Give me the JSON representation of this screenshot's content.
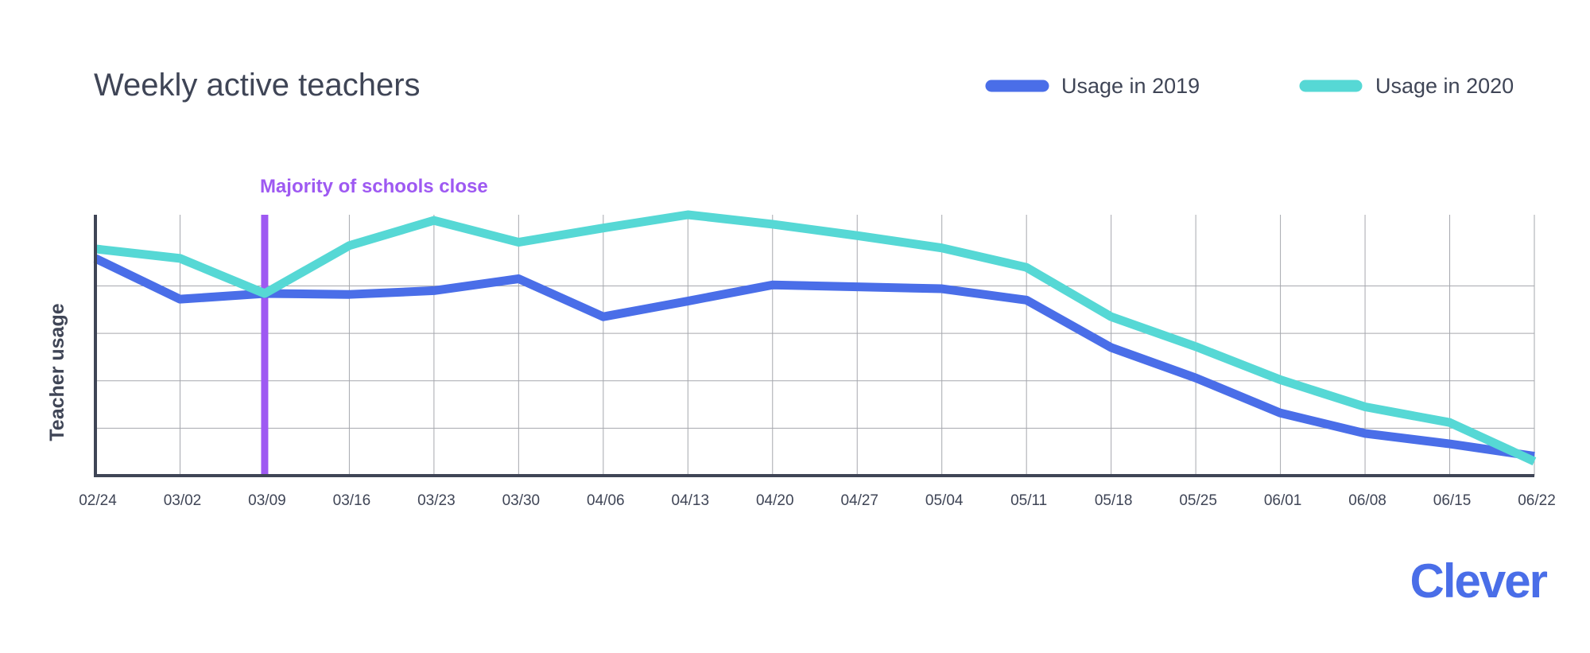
{
  "chart_data": {
    "type": "line",
    "title": "Weekly active teachers",
    "xlabel": "",
    "ylabel": "Teacher usage",
    "categories": [
      "02/24",
      "03/02",
      "03/09",
      "03/16",
      "03/23",
      "03/30",
      "04/06",
      "04/13",
      "04/20",
      "04/27",
      "05/04",
      "05/11",
      "05/18",
      "05/25",
      "06/01",
      "06/08",
      "06/15",
      "06/22"
    ],
    "ylim": [
      0,
      5.5
    ],
    "grid": true,
    "legend_position": "top-right",
    "series": [
      {
        "name": "Usage in 2019",
        "color": "#4a6ee8",
        "values": [
          4.58,
          3.72,
          3.84,
          3.82,
          3.9,
          4.15,
          3.35,
          3.68,
          4.02,
          3.98,
          3.94,
          3.7,
          2.7,
          2.06,
          1.32,
          0.89,
          0.67,
          0.41
        ]
      },
      {
        "name": "Usage in 2020",
        "color": "#56d8d5",
        "values": [
          4.78,
          4.58,
          3.84,
          4.85,
          5.38,
          4.92,
          5.22,
          5.5,
          5.3,
          5.06,
          4.8,
          4.39,
          3.35,
          2.72,
          2.02,
          1.45,
          1.12,
          0.3
        ]
      }
    ],
    "annotations": [
      {
        "text": "Majority of schools close",
        "x": "03/09",
        "color": "#9e59f2"
      }
    ]
  },
  "brand": "Clever",
  "colors": {
    "axis": "#3f4556",
    "grid": "#a6a8ae",
    "brand": "#4a6ee8"
  }
}
